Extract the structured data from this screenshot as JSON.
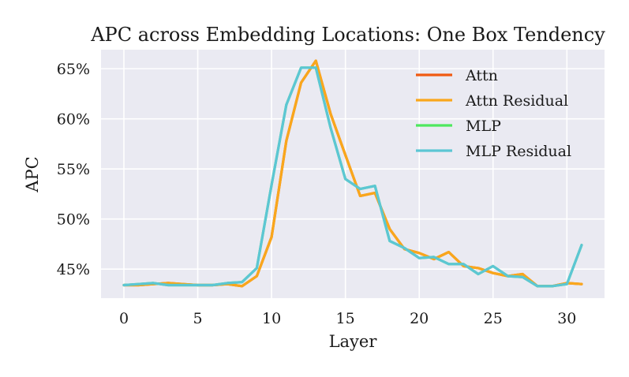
{
  "chart_data": {
    "type": "line",
    "title": "APC across Embedding Locations: One Box Tendency",
    "xlabel": "Layer",
    "ylabel": "APC",
    "xlim": [
      -1.55,
      32.55
    ],
    "ylim": [
      42.1,
      66.9
    ],
    "xticks": [
      0,
      5,
      10,
      15,
      20,
      25,
      30
    ],
    "yticks": [
      45,
      50,
      55,
      60,
      65
    ],
    "ytick_suffix": "%",
    "grid": true,
    "legend_position": "top-right",
    "x": [
      0,
      1,
      2,
      3,
      4,
      5,
      6,
      7,
      8,
      9,
      10,
      11,
      12,
      13,
      14,
      15,
      16,
      17,
      18,
      19,
      20,
      21,
      22,
      23,
      24,
      25,
      26,
      27,
      28,
      29,
      30,
      31
    ],
    "series": [
      {
        "name": "Attn",
        "color": "#f05a12",
        "values": [
          43.4,
          43.4,
          43.5,
          43.6,
          43.5,
          43.4,
          43.4,
          43.5,
          43.3,
          44.3,
          48.2,
          57.8,
          63.6,
          65.8,
          60.5,
          56.4,
          52.3,
          52.6,
          49.0,
          47.0,
          46.6,
          46.0,
          46.7,
          45.3,
          45.1,
          44.6,
          44.3,
          44.5,
          43.3,
          43.3,
          43.6,
          43.5
        ]
      },
      {
        "name": "Attn Residual",
        "color": "#f9a71c",
        "values": [
          43.4,
          43.4,
          43.5,
          43.6,
          43.5,
          43.4,
          43.4,
          43.5,
          43.3,
          44.3,
          48.2,
          57.8,
          63.6,
          65.8,
          60.5,
          56.4,
          52.3,
          52.6,
          49.0,
          47.0,
          46.6,
          46.0,
          46.7,
          45.3,
          45.1,
          44.6,
          44.3,
          44.5,
          43.3,
          43.3,
          43.6,
          43.5
        ]
      },
      {
        "name": "MLP",
        "color": "#4ee85e",
        "values": [
          43.4,
          43.5,
          43.6,
          43.4,
          43.4,
          43.4,
          43.4,
          43.6,
          43.7,
          45.1,
          53.4,
          61.4,
          65.1,
          65.1,
          59.1,
          54.0,
          53.0,
          53.3,
          47.8,
          47.1,
          46.1,
          46.2,
          45.5,
          45.5,
          44.5,
          45.3,
          44.3,
          44.2,
          43.3,
          43.3,
          43.5,
          47.4
        ]
      },
      {
        "name": "MLP Residual",
        "color": "#5cc6d4",
        "values": [
          43.4,
          43.5,
          43.6,
          43.4,
          43.4,
          43.4,
          43.4,
          43.6,
          43.7,
          45.1,
          53.4,
          61.4,
          65.1,
          65.1,
          59.1,
          54.0,
          53.0,
          53.3,
          47.8,
          47.1,
          46.1,
          46.2,
          45.5,
          45.5,
          44.5,
          45.3,
          44.3,
          44.2,
          43.3,
          43.3,
          43.5,
          47.4
        ]
      }
    ],
    "legend_line_colors": [
      "#f05a12",
      "#f9a71c",
      "#4ee85e",
      "#5cc6d4"
    ]
  }
}
